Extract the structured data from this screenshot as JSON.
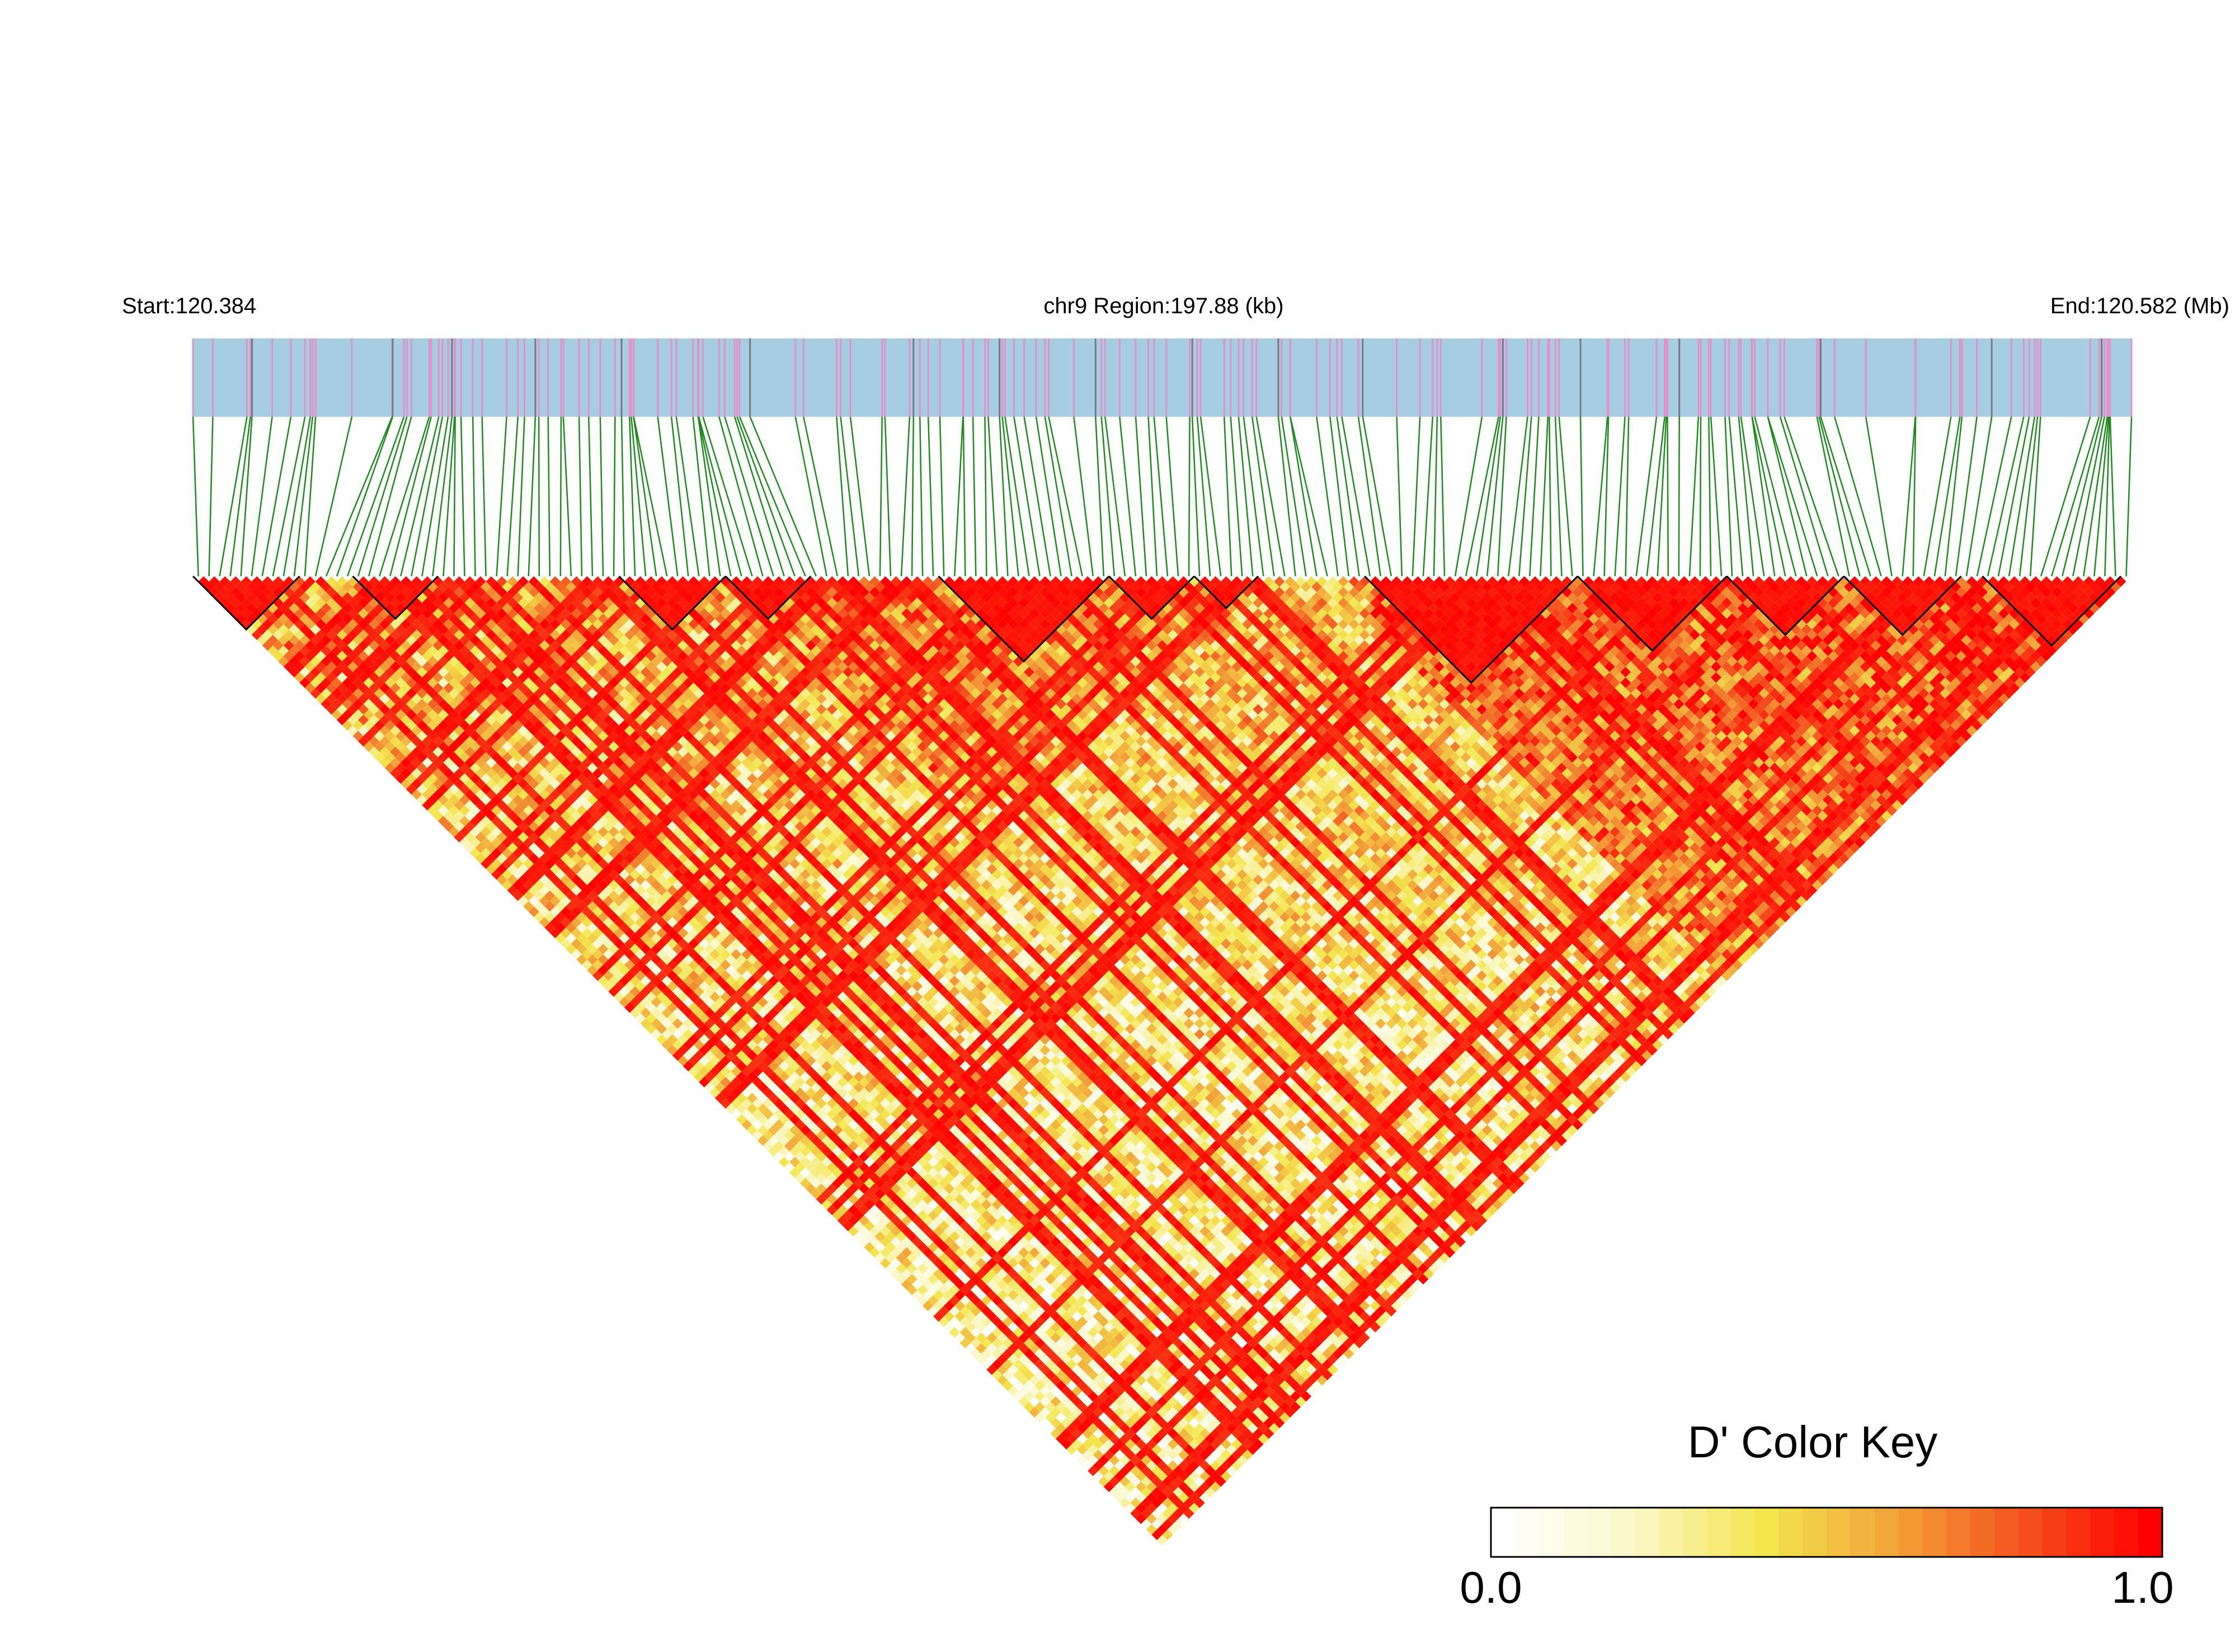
{
  "chart_data": {
    "type": "heatmap",
    "subtype": "linkage-disequilibrium-triangle",
    "start_label": "Start:120.384",
    "region_label": "chr9 Region:197.88 (kb)",
    "end_label": "End:120.582 (Mb)",
    "region": {
      "chromosome": "chr9",
      "start_mb": 120.384,
      "end_mb": 120.582,
      "length_kb": 197.88
    },
    "snp_count": 182,
    "blocks": [
      {
        "from": 0,
        "to": 10
      },
      {
        "from": 15,
        "to": 23
      },
      {
        "from": 40,
        "to": 50
      },
      {
        "from": 50,
        "to": 58
      },
      {
        "from": 70,
        "to": 86
      },
      {
        "from": 86,
        "to": 94
      },
      {
        "from": 94,
        "to": 100
      },
      {
        "from": 110,
        "to": 130
      },
      {
        "from": 130,
        "to": 144
      },
      {
        "from": 144,
        "to": 155
      },
      {
        "from": 155,
        "to": 166
      },
      {
        "from": 168,
        "to": 181
      }
    ],
    "legend": {
      "title": "D' Color Key",
      "min_label": "0.0",
      "max_label": "1.0",
      "min": 0.0,
      "max": 1.0,
      "colors": [
        "#ffffff",
        "#fbf7c8",
        "#f3e74e",
        "#f2a53a",
        "#f3541e",
        "#ff0000"
      ]
    },
    "colors": {
      "track_fill": "#a6cde1",
      "track_tick_pink": "#e291c9",
      "track_tick_gray": "#7a7a7a",
      "connector_line": "#1c8a1c",
      "block_outline": "#000000"
    }
  }
}
